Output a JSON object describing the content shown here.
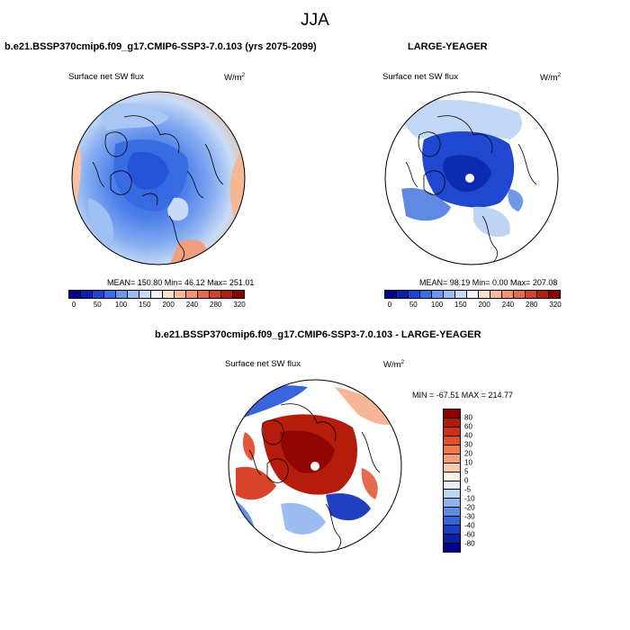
{
  "season": "JJA",
  "panel1": {
    "header": "b.e21.BSSP370cmip6.f09_g17.CMIP6-SSP3-7.0.103 (yrs 2075-2099)",
    "variable": "Surface net SW flux",
    "units": "W/m",
    "units_sup": "2",
    "stats": "MEAN= 150.80  Min=  46.12  Max= 251.01"
  },
  "panel2": {
    "header": "LARGE-YEAGER",
    "variable": "Surface net SW flux",
    "units": "W/m",
    "units_sup": "2",
    "stats": "MEAN=  98.19  Min=   0.00  Max= 207.08"
  },
  "panel3": {
    "header": "b.e21.BSSP370cmip6.f09_g17.CMIP6-SSP3-7.0.103 - LARGE-YEAGER",
    "variable": "Surface net SW flux",
    "units": "W/m",
    "units_sup": "2",
    "stats": "MIN = -67.51 MAX = 214.77"
  },
  "colorbar_abs": {
    "colors": [
      "#00008b",
      "#0a1fb4",
      "#1a44d8",
      "#3b6ee6",
      "#6b97ec",
      "#9cbcf2",
      "#c6dbf8",
      "#f0f4fb",
      "#fde1cf",
      "#f9bc9a",
      "#f29472",
      "#e66a4c",
      "#d0402c",
      "#b01f12",
      "#8b0000"
    ],
    "tick_labels": [
      "0",
      "50",
      "100",
      "150",
      "200",
      "240",
      "280",
      "320"
    ]
  },
  "colorbar_diff": {
    "colors": [
      "#8b0000",
      "#b11a0a",
      "#cf2f16",
      "#e44e2a",
      "#f07748",
      "#f69e74",
      "#fbc9ab",
      "#fdf0e6",
      "#e6eefa",
      "#bdd3f3",
      "#8fb1ec",
      "#5f8ae3",
      "#3563d8",
      "#1a3ec2",
      "#0a20a3",
      "#00008b"
    ],
    "tick_labels": [
      "80",
      "60",
      "40",
      "30",
      "20",
      "10",
      "5",
      "0",
      "-5",
      "-10",
      "-20",
      "-30",
      "-40",
      "-60",
      "-80"
    ]
  }
}
